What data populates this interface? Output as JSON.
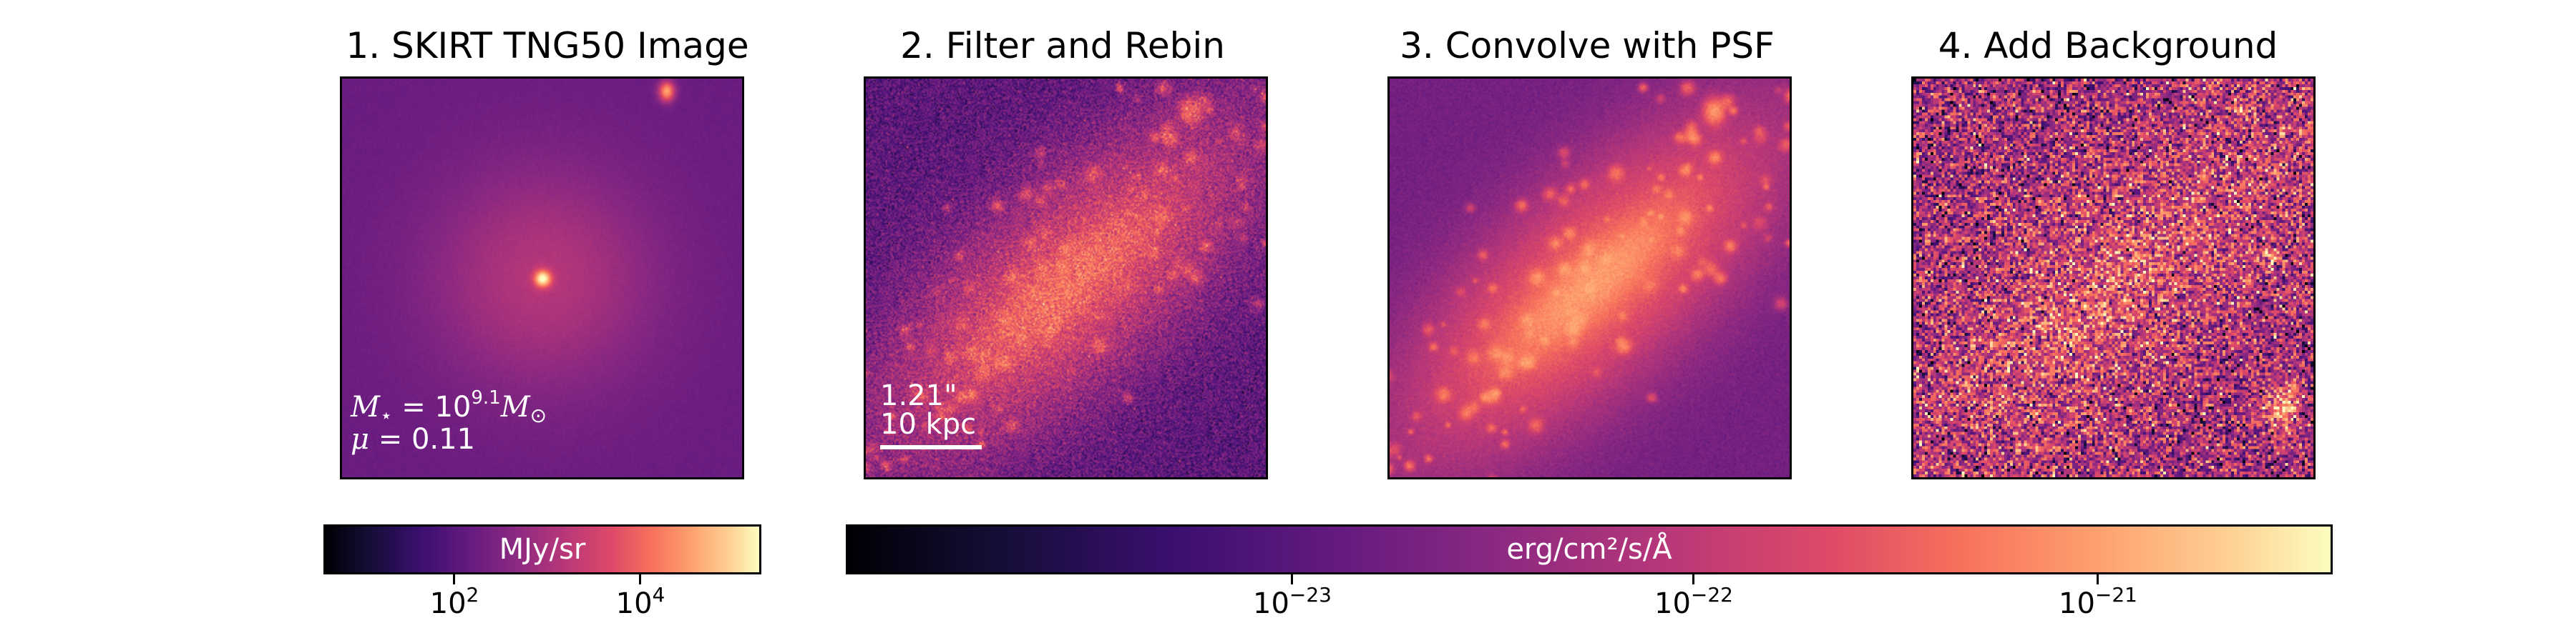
{
  "panels": [
    {
      "title": "1. SKIRT TNG50 Image"
    },
    {
      "title": "2. Filter and Rebin"
    },
    {
      "title": "3. Convolve with PSF"
    },
    {
      "title": "4. Add Background"
    }
  ],
  "annotations": {
    "mass_symbol": "M",
    "mass_sub": "⋆",
    "mass_eq": " = 10",
    "mass_exp": "9.1",
    "mass_unit": "M",
    "mass_unit_sub": "⊙",
    "mu_symbol": "μ",
    "mu_value": " = 0.11",
    "scale_arcsec": "1.21\"",
    "scale_kpc": "10 kpc"
  },
  "colorbars": [
    {
      "label": "MJy/sr",
      "colormap": "magma",
      "ticks": [
        {
          "base": "10",
          "exp": "2"
        },
        {
          "base": "10",
          "exp": "4"
        }
      ]
    },
    {
      "label": "erg/cm²/s/Å",
      "colormap": "magma",
      "ticks": [
        {
          "base": "10",
          "exp": "−23"
        },
        {
          "base": "10",
          "exp": "−22"
        },
        {
          "base": "10",
          "exp": "−21"
        }
      ]
    }
  ]
}
